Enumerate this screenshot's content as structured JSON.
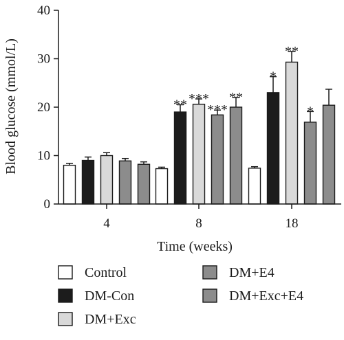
{
  "chart_data": {
    "type": "bar",
    "xlabel": "Time (weeks)",
    "ylabel": "Blood glucose (mmol/L)",
    "ylim": [
      0,
      40
    ],
    "yticks": [
      "0",
      "10",
      "20",
      "30",
      "40"
    ],
    "categories": [
      "4",
      "8",
      "18"
    ],
    "legend_placement": "bottom",
    "series": [
      {
        "name": "Control",
        "color": "#ffffff",
        "values": [
          8.0,
          7.3,
          7.4
        ],
        "errors": [
          0.4,
          0.3,
          0.3
        ],
        "sig": [
          "",
          "",
          ""
        ]
      },
      {
        "name": "DM-Con",
        "color": "#1c1c1c",
        "values": [
          9.0,
          19.0,
          23.0
        ],
        "errors": [
          0.7,
          1.5,
          3.3
        ],
        "sig": [
          "",
          "**",
          "*"
        ]
      },
      {
        "name": "DM+Exc",
        "color": "#d9d9d9",
        "values": [
          10.0,
          20.6,
          29.3
        ],
        "errors": [
          0.6,
          1.1,
          2.2
        ],
        "sig": [
          "",
          "***",
          "**"
        ]
      },
      {
        "name": "DM+E4",
        "color": "#8c8c8c",
        "values": [
          8.9,
          18.4,
          16.9
        ],
        "errors": [
          0.5,
          1.0,
          2.2
        ],
        "sig": [
          "",
          "***",
          "*"
        ]
      },
      {
        "name": "DM+Exc+E4",
        "color": "#8c8c8c",
        "values": [
          8.2,
          20.0,
          20.4
        ],
        "errors": [
          0.5,
          2.0,
          3.3
        ],
        "sig": [
          "",
          "**",
          ""
        ]
      }
    ]
  }
}
